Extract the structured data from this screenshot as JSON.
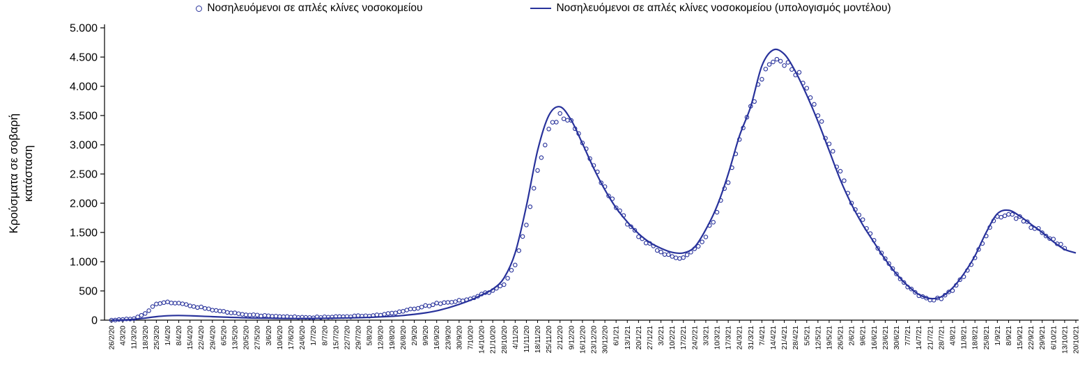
{
  "colors": {
    "accent": "#28329B",
    "axis": "#000000",
    "background": "#ffffff"
  },
  "chart_data": {
    "type": "line+scatter",
    "title": "",
    "xlabel": "",
    "ylabel": "Κρούσματα σε σοβαρή κατάσταση",
    "ylim": [
      0,
      5000
    ],
    "ytick_step": 500,
    "ytick_labels": [
      "0",
      "500",
      "1.000",
      "1.500",
      "2.000",
      "2.500",
      "3.000",
      "3.500",
      "4.000",
      "4.500",
      "5.000"
    ],
    "grid": false,
    "legend_position": "top",
    "color": "#28329B",
    "categories": [
      "26/2/20",
      "4/3/20",
      "11/3/20",
      "18/3/20",
      "25/3/20",
      "1/4/20",
      "8/4/20",
      "15/4/20",
      "22/4/20",
      "29/4/20",
      "6/5/20",
      "13/5/20",
      "20/5/20",
      "27/5/20",
      "3/6/20",
      "10/6/20",
      "17/6/20",
      "24/6/20",
      "1/7/20",
      "8/7/20",
      "15/7/20",
      "22/7/20",
      "29/7/20",
      "5/8/20",
      "12/8/20",
      "19/8/20",
      "26/8/20",
      "2/9/20",
      "9/9/20",
      "16/9/20",
      "23/9/20",
      "30/9/20",
      "7/10/20",
      "14/10/20",
      "21/10/20",
      "28/10/20",
      "4/11/20",
      "11/11/20",
      "18/11/20",
      "25/11/20",
      "2/12/20",
      "9/12/20",
      "16/12/20",
      "23/12/20",
      "30/12/20",
      "6/1/21",
      "13/1/21",
      "20/1/21",
      "27/1/21",
      "3/2/21",
      "10/2/21",
      "17/2/21",
      "24/2/21",
      "3/3/21",
      "10/3/21",
      "17/3/21",
      "24/3/21",
      "31/3/21",
      "7/4/21",
      "14/4/21",
      "21/4/21",
      "28/4/21",
      "5/5/21",
      "12/5/21",
      "19/5/21",
      "26/5/21",
      "2/6/21",
      "9/6/21",
      "16/6/21",
      "23/6/21",
      "30/6/21",
      "7/7/21",
      "14/7/21",
      "21/7/21",
      "28/7/21",
      "4/8/21",
      "11/8/21",
      "18/8/21",
      "25/8/21",
      "1/9/21",
      "8/9/21",
      "15/9/21",
      "22/9/21",
      "29/9/21",
      "6/10/21",
      "13/10/21",
      "20/10/21"
    ],
    "series": [
      {
        "name": "Νοσηλευόμενοι σε απλές κλίνες νοσοκομείου",
        "type": "scatter",
        "marker": "open-circle",
        "values": [
          2,
          8,
          25,
          120,
          280,
          300,
          285,
          250,
          215,
          180,
          145,
          120,
          100,
          85,
          70,
          62,
          55,
          50,
          48,
          50,
          55,
          60,
          68,
          78,
          92,
          115,
          150,
          195,
          240,
          280,
          305,
          330,
          370,
          440,
          505,
          610,
          950,
          1650,
          2550,
          3250,
          3550,
          3420,
          3080,
          2650,
          2250,
          1930,
          1680,
          1460,
          1290,
          1160,
          1060,
          1090,
          1210,
          1450,
          1850,
          2400,
          3050,
          3600,
          4200,
          4400,
          4420,
          4250,
          3950,
          3500,
          3000,
          2500,
          2050,
          1680,
          1360,
          1050,
          780,
          570,
          420,
          340,
          380,
          520,
          760,
          1060,
          1450,
          1780,
          1850,
          1740,
          1620,
          1490,
          1360,
          1230,
          null
        ]
      },
      {
        "name": "Νοσηλευόμενοι σε απλές κλίνες νοσοκομείου (υπολογισμός μοντέλου)",
        "type": "line",
        "marker": "none",
        "values": [
          0,
          5,
          15,
          35,
          60,
          75,
          80,
          75,
          68,
          60,
          52,
          46,
          40,
          36,
          33,
          30,
          28,
          28,
          30,
          32,
          35,
          38,
          42,
          48,
          56,
          66,
          80,
          100,
          125,
          160,
          210,
          270,
          340,
          430,
          530,
          720,
          1150,
          1950,
          2900,
          3500,
          3650,
          3420,
          3020,
          2600,
          2230,
          1920,
          1680,
          1480,
          1330,
          1230,
          1160,
          1150,
          1250,
          1550,
          1950,
          2500,
          3150,
          3650,
          4350,
          4620,
          4550,
          4250,
          3850,
          3400,
          2900,
          2400,
          1980,
          1630,
          1330,
          1040,
          790,
          590,
          440,
          370,
          400,
          550,
          790,
          1100,
          1500,
          1820,
          1880,
          1780,
          1640,
          1500,
          1340,
          1210,
          1150
        ]
      }
    ]
  }
}
